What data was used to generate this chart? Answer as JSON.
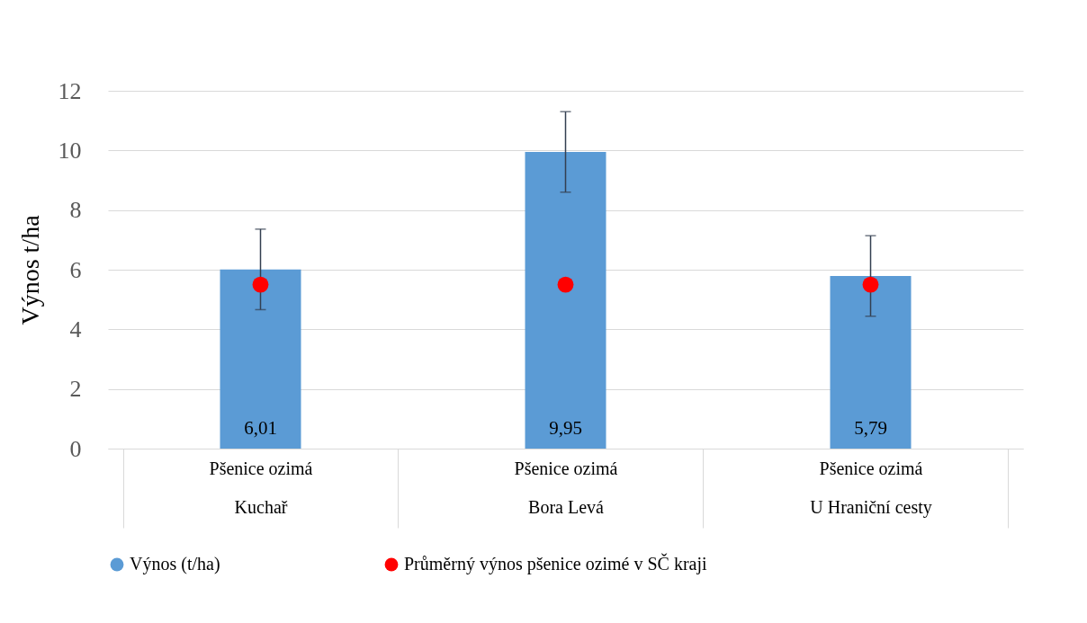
{
  "chart_data": {
    "type": "bar",
    "ylabel": "Výnos t/ha",
    "categories": [
      "Pšenice ozimá\nKuchař",
      "Pšenice ozimá\nBora Levá",
      "Pšenice ozimá\nU Hraniční cesty"
    ],
    "series": [
      {
        "name": "Výnos (t/ha)",
        "color": "#5b9bd5",
        "values": [
          6.01,
          9.95,
          5.79
        ],
        "errors": [
          1.35,
          1.35,
          1.35
        ],
        "value_labels": [
          "6,01",
          "9,95",
          "5,79"
        ]
      },
      {
        "name": "Průměrný výnos pšenice ozimé v SČ kraji",
        "type": "scatter",
        "color": "#ff0000",
        "marker": "circle",
        "x": [
          "Pšenice ozimá\nKuchař",
          "Pšenice ozimá\nBora Levá",
          "Pšenice ozimá\nU Hraniční cesty"
        ],
        "values": [
          5.5,
          5.5,
          5.5
        ]
      }
    ],
    "ylim": [
      0,
      12
    ],
    "yticks": [
      0,
      2,
      4,
      6,
      8,
      10,
      12
    ],
    "grid": "y",
    "legend": "bottom"
  }
}
